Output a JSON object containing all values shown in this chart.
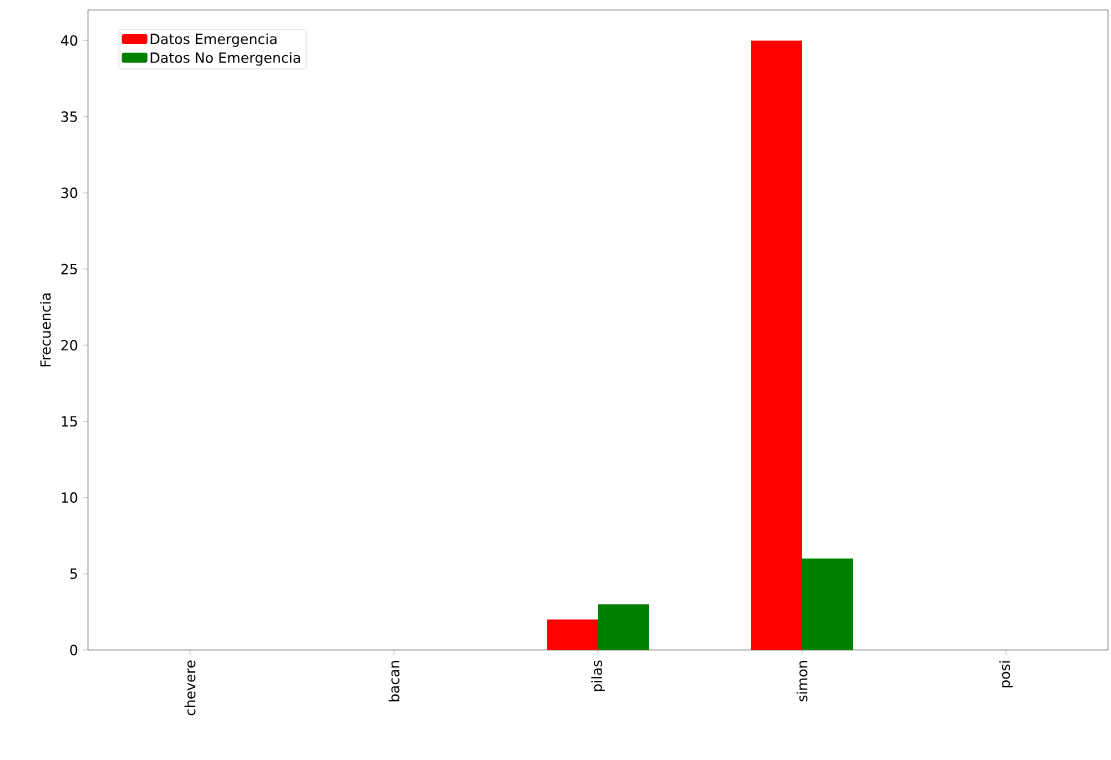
{
  "chart_data": {
    "type": "bar",
    "ylabel": "Frecuencia",
    "categories": [
      "chevere",
      "bacan",
      "pilas",
      "simon",
      "posi"
    ],
    "series": [
      {
        "name": "Datos Emergencia",
        "color": "#ff0000",
        "values": [
          0,
          0,
          2,
          40,
          0
        ]
      },
      {
        "name": "Datos No Emergencia",
        "color": "#008000",
        "values": [
          0,
          0,
          3,
          6,
          0
        ]
      }
    ],
    "ylim": [
      0,
      42
    ],
    "yticks": [
      0,
      5,
      10,
      15,
      20,
      25,
      30,
      35,
      40
    ],
    "legend": "top left"
  }
}
